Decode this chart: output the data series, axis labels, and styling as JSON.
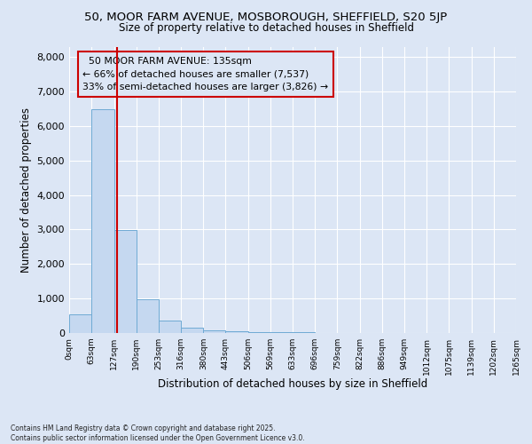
{
  "title1": "50, MOOR FARM AVENUE, MOSBOROUGH, SHEFFIELD, S20 5JP",
  "title2": "Size of property relative to detached houses in Sheffield",
  "xlabel": "Distribution of detached houses by size in Sheffield",
  "ylabel": "Number of detached properties",
  "bin_edges": [
    0,
    63,
    127,
    190,
    253,
    316,
    380,
    443,
    506,
    569,
    633,
    696,
    759,
    822,
    886,
    949,
    1012,
    1075,
    1139,
    1202,
    1265
  ],
  "bin_counts": [
    530,
    6480,
    2980,
    970,
    370,
    150,
    90,
    55,
    30,
    20,
    15,
    10,
    8,
    5,
    4,
    3,
    2,
    2,
    1,
    1
  ],
  "bar_color": "#c5d8f0",
  "bar_edge_color": "#6faad4",
  "property_size": 135,
  "property_label": "50 MOOR FARM AVENUE: 135sqm",
  "pct_smaller": 66,
  "num_smaller": 7537,
  "pct_larger_semi": 33,
  "num_larger_semi": 3826,
  "vline_color": "#cc0000",
  "ylim": [
    0,
    8300
  ],
  "yticks": [
    0,
    1000,
    2000,
    3000,
    4000,
    5000,
    6000,
    7000,
    8000
  ],
  "background_color": "#dce6f5",
  "grid_color": "#ffffff",
  "footer1": "Contains HM Land Registry data © Crown copyright and database right 2025.",
  "footer2": "Contains public sector information licensed under the Open Government Licence v3.0."
}
